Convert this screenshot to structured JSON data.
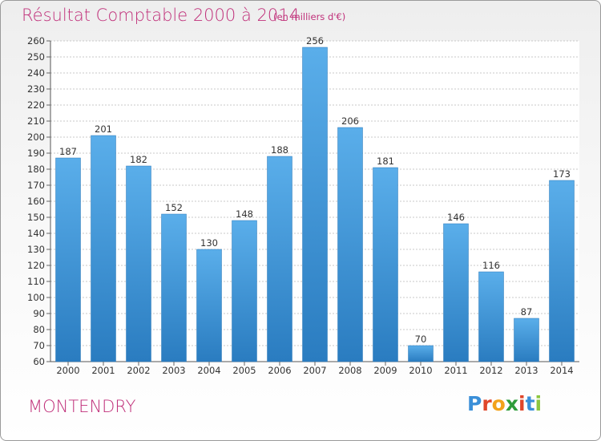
{
  "header": {
    "title": "Résultat Comptable 2000 à 2014",
    "subtitle": "(en milliers d'€)"
  },
  "footer": {
    "location": "MONTENDRY",
    "brand_letters": [
      "P",
      "r",
      "o",
      "x",
      "i",
      "t",
      "i"
    ],
    "brand_colors": [
      "#3a8fd8",
      "#e0462a",
      "#f2a21b",
      "#2f9c3a",
      "#e0462a",
      "#3a8fd8",
      "#8cc63f"
    ]
  },
  "chart_data": {
    "type": "bar",
    "title": "Résultat Comptable 2000 à 2014",
    "xlabel": "",
    "ylabel": "",
    "categories": [
      "2000",
      "2001",
      "2002",
      "2003",
      "2004",
      "2005",
      "2006",
      "2007",
      "2008",
      "2009",
      "2010",
      "2011",
      "2012",
      "2013",
      "2014"
    ],
    "values": [
      187,
      201,
      182,
      152,
      130,
      148,
      188,
      256,
      206,
      181,
      70,
      146,
      116,
      87,
      173
    ],
    "ylim": [
      60,
      260
    ],
    "ytick_step": 10,
    "grid": true,
    "bar_color_light": "#5aaeea",
    "bar_color_dark": "#2a7cc0"
  }
}
